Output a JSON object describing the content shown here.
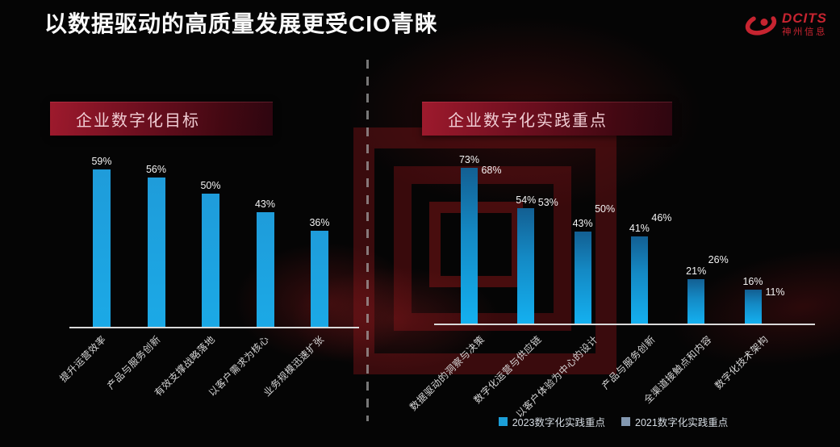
{
  "page": {
    "title": "以数据驱动的高质量发展更受CIO青睐"
  },
  "logo": {
    "brand": "DCITS",
    "company": "神州信息"
  },
  "colors": {
    "background": "#050505",
    "title_text": "#fafafa",
    "logo_red": "#c62430",
    "banner_red": "#8e1426",
    "bar_cyan": "#14a9e8",
    "bar_gray_blue": "#aabfd5",
    "axis_line": "#d9d9d9",
    "label_text": "#d6d6d6"
  },
  "chart_data": [
    {
      "type": "bar",
      "title": "企业数字化目标",
      "categories": [
        "提升运营效率",
        "产品与服务创新",
        "有效支撑战略落地",
        "以客户需求为核心",
        "业务规模迅速扩张"
      ],
      "values": [
        59,
        56,
        50,
        43,
        36
      ],
      "unit": "%",
      "value_labels": true,
      "bar_color": "#14a9e8",
      "xlabel": "",
      "ylabel": "",
      "ylim": [
        0,
        65
      ],
      "grid": false,
      "y_axis_visible": false
    },
    {
      "type": "bar",
      "title": "企业数字化实践重点",
      "categories": [
        "数据驱动的洞察与决策",
        "数字化运营与供应链",
        "以客户体验为中心的设计",
        "产品与服务创新",
        "全渠道接触点和内容",
        "数字化技术架构"
      ],
      "series": [
        {
          "name": "2023数字化实践重点",
          "values": [
            73,
            54,
            43,
            41,
            21,
            16
          ],
          "color": "#14a9e8"
        },
        {
          "name": "2021数字化实践重点",
          "values": [
            68,
            53,
            50,
            46,
            26,
            11
          ],
          "color": "#aabfd5"
        }
      ],
      "unit": "%",
      "value_labels": true,
      "xlabel": "",
      "ylabel": "",
      "ylim": [
        0,
        80
      ],
      "grid": false,
      "y_axis_visible": false,
      "legend_position": "bottom"
    }
  ]
}
